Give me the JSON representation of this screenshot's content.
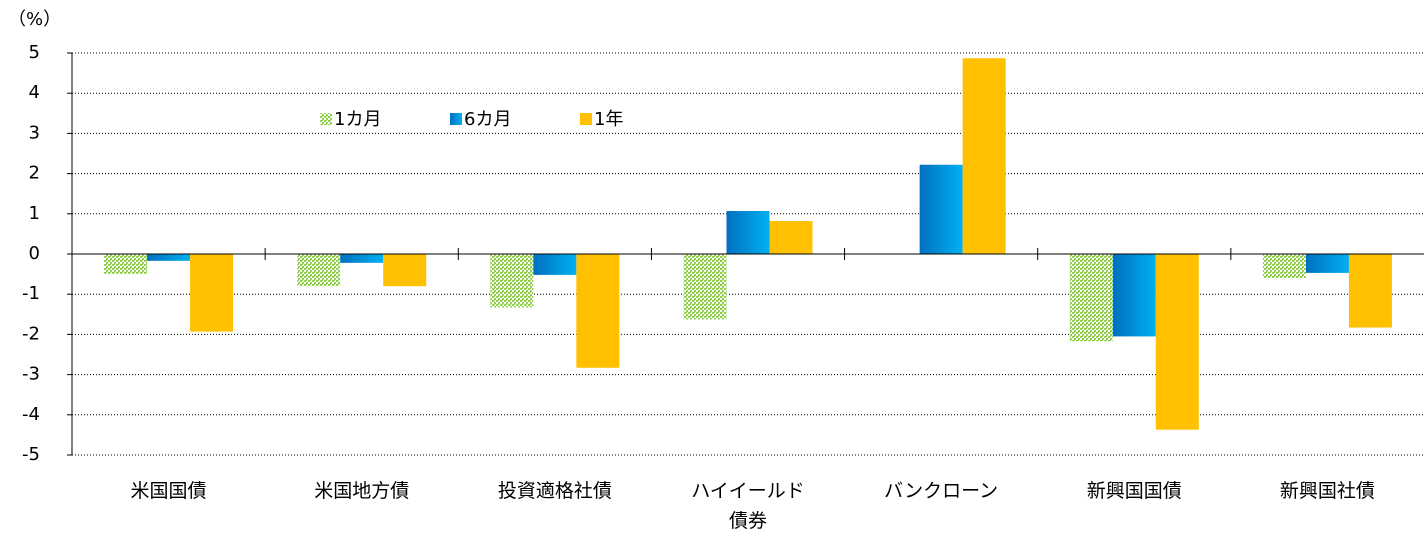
{
  "chart_data": {
    "type": "bar",
    "y_label": "（%）",
    "categories": [
      "米国国債",
      "米国地方債",
      "投資適格社債",
      "ハイイールド\n債券",
      "バンクローン",
      "新興国国債",
      "新興国社債"
    ],
    "series": [
      {
        "name": "1カ月",
        "color": "#92d050",
        "values": [
          -0.5,
          -0.8,
          -1.33,
          -1.63,
          0.0,
          -2.17,
          -0.6
        ]
      },
      {
        "name": "6カ月",
        "color": "#0070c0",
        "values": [
          -0.17,
          -0.22,
          -0.52,
          1.07,
          2.22,
          -2.05,
          -0.47
        ]
      },
      {
        "name": "1年",
        "color": "#ffc000",
        "values": [
          -1.93,
          -0.8,
          -2.83,
          0.82,
          4.87,
          -4.37,
          -1.83
        ]
      }
    ],
    "ylim": [
      -5,
      5
    ],
    "yticks": [
      -5,
      -4,
      -3,
      -2,
      -1,
      0,
      1,
      2,
      3,
      4,
      5
    ],
    "grid": true
  }
}
